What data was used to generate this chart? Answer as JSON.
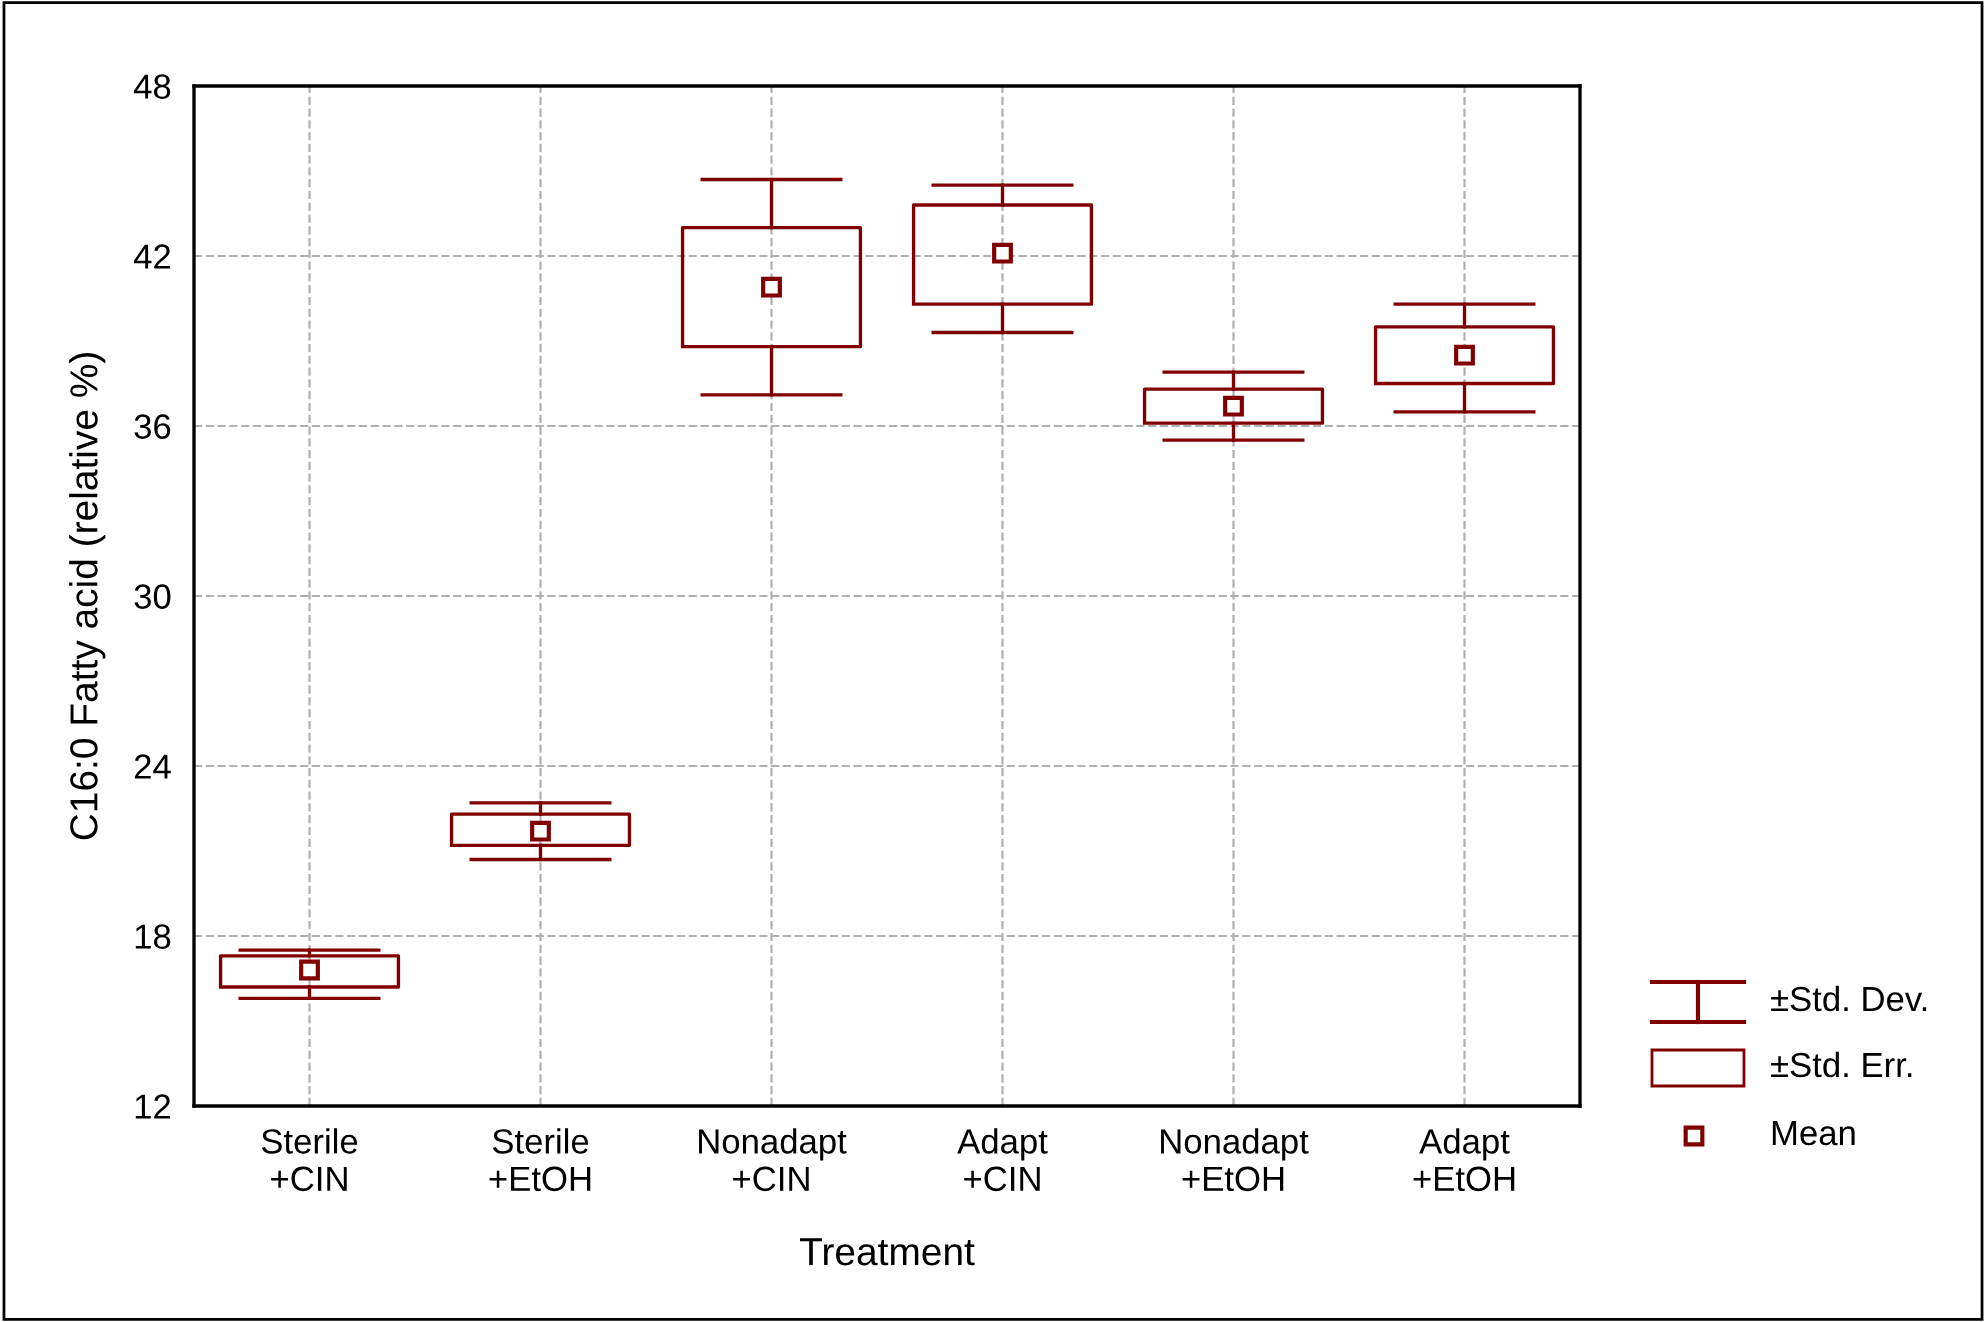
{
  "chart_data": {
    "type": "box",
    "xlabel": "Treatment",
    "ylabel": "C16:0 Fatty acid (relative %)",
    "categories": [
      "Sterile\n+CIN",
      "Sterile\n+EtOH",
      "Nonadapt\n+CIN",
      "Adapt\n+CIN",
      "Nonadapt\n+EtOH",
      "Adapt\n+EtOH"
    ],
    "color": "#800000",
    "boxes": [
      {
        "low": 15.8,
        "q1": 16.2,
        "median": 16.8,
        "q3": 17.3,
        "high": 17.5
      },
      {
        "low": 20.7,
        "q1": 21.2,
        "median": 21.7,
        "q3": 22.3,
        "high": 22.7
      },
      {
        "low": 37.1,
        "q1": 38.8,
        "median": 40.9,
        "q3": 43.0,
        "high": 44.7
      },
      {
        "low": 39.3,
        "q1": 40.3,
        "median": 42.1,
        "q3": 43.8,
        "high": 44.5
      },
      {
        "low": 35.5,
        "q1": 36.1,
        "median": 36.7,
        "q3": 37.3,
        "high": 37.9
      },
      {
        "low": 36.5,
        "q1": 37.5,
        "median": 38.5,
        "q3": 39.5,
        "high": 40.3
      }
    ],
    "ylim": [
      12,
      48
    ],
    "yticks": [
      12,
      18,
      24,
      30,
      36,
      42,
      48
    ],
    "grid": true,
    "line_style": "dashed",
    "marker": "square",
    "annotations": [
      "±Std. Dev.",
      "±Std. Err.",
      "Mean"
    ]
  }
}
